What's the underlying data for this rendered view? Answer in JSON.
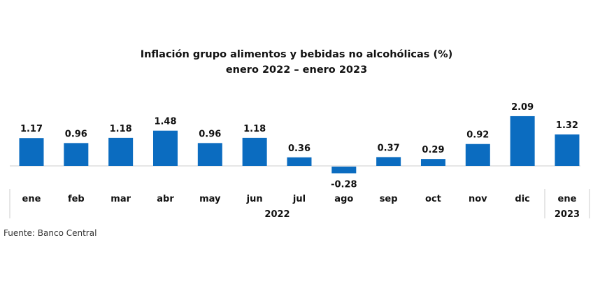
{
  "chart_data": {
    "type": "bar",
    "title": "Inflación grupo alimentos y bebidas no alcohólicas (%)",
    "subtitle": "enero 2022 – enero 2023",
    "categories": [
      "ene",
      "feb",
      "mar",
      "abr",
      "may",
      "jun",
      "jul",
      "ago",
      "sep",
      "oct",
      "nov",
      "dic",
      "ene"
    ],
    "values": [
      1.17,
      0.96,
      1.18,
      1.48,
      0.96,
      1.18,
      0.36,
      -0.28,
      0.37,
      0.29,
      0.92,
      2.09,
      1.32
    ],
    "data_labels": [
      "1.17",
      "0.96",
      "1.18",
      "1.48",
      "0.96",
      "1.18",
      "0.36",
      "-0.28",
      "0.37",
      "0.29",
      "0.92",
      "2.09",
      "1.32"
    ],
    "year_groups": [
      {
        "label": "2022",
        "start": 0,
        "end": 11
      },
      {
        "label": "2023",
        "start": 12,
        "end": 12
      }
    ],
    "xlabel": "",
    "ylabel": "",
    "grid": false,
    "bar_color": "#0b6cc0"
  },
  "source": "Fuente: Banco Central"
}
